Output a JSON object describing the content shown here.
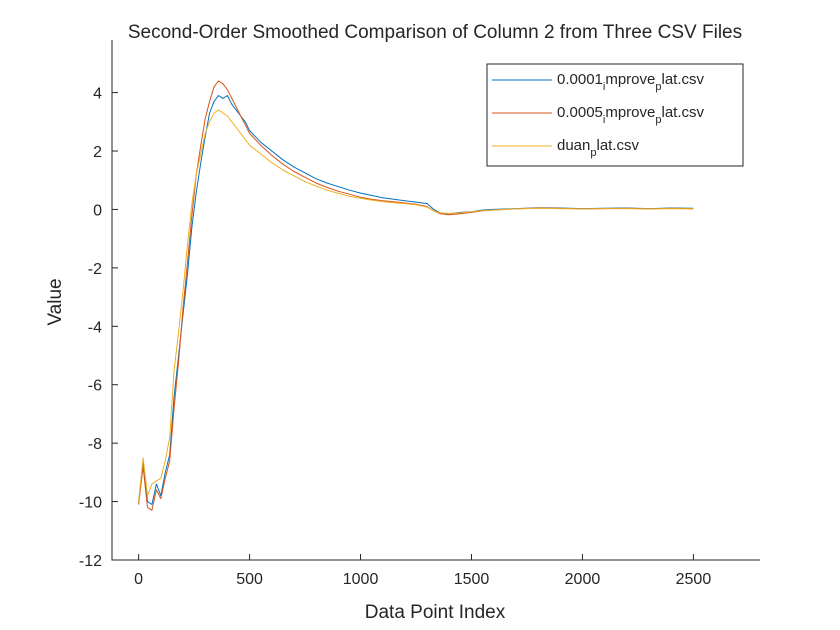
{
  "chart_data": {
    "type": "line",
    "title": "Second-Order Smoothed Comparison of Column 2 from Three CSV Files",
    "xlabel": "Data Point Index",
    "ylabel": "Value",
    "xlim": [
      -120,
      2800
    ],
    "ylim": [
      -12,
      5.8
    ],
    "xticks": [
      0,
      500,
      1000,
      1500,
      2000,
      2500
    ],
    "yticks": [
      -12,
      -10,
      -8,
      -6,
      -4,
      -2,
      0,
      2,
      4
    ],
    "grid": false,
    "legend_position": "top-right",
    "series": [
      {
        "name": "0.0001_improve_plat.csv",
        "legend_parts": [
          "0.0001",
          "i",
          "mprove",
          "p",
          "lat.csv"
        ],
        "color": "#0072BD",
        "x": [
          0,
          20,
          40,
          60,
          80,
          100,
          120,
          140,
          160,
          180,
          200,
          220,
          240,
          260,
          280,
          300,
          320,
          340,
          360,
          380,
          400,
          420,
          440,
          460,
          480,
          500,
          550,
          600,
          650,
          700,
          750,
          800,
          850,
          900,
          950,
          1000,
          1050,
          1100,
          1150,
          1200,
          1250,
          1300,
          1330,
          1360,
          1400,
          1450,
          1500,
          1550,
          1600,
          1700,
          1800,
          1900,
          2000,
          2100,
          2200,
          2300,
          2400,
          2500
        ],
        "y": [
          -10.0,
          -8.6,
          -10.0,
          -10.1,
          -9.4,
          -9.8,
          -9.0,
          -8.4,
          -6.4,
          -5.0,
          -3.6,
          -2.2,
          -0.6,
          0.6,
          1.6,
          2.5,
          3.3,
          3.7,
          3.9,
          3.8,
          3.9,
          3.6,
          3.4,
          3.2,
          3.0,
          2.7,
          2.3,
          2.0,
          1.7,
          1.45,
          1.25,
          1.05,
          0.9,
          0.78,
          0.66,
          0.56,
          0.48,
          0.4,
          0.35,
          0.3,
          0.25,
          0.2,
          0.0,
          -0.12,
          -0.15,
          -0.1,
          -0.08,
          -0.02,
          0.0,
          0.03,
          0.06,
          0.05,
          0.03,
          0.04,
          0.05,
          0.03,
          0.05,
          0.04
        ]
      },
      {
        "name": "0.0005_improve_plat.csv",
        "legend_parts": [
          "0.0005",
          "i",
          "mprove",
          "p",
          "lat.csv"
        ],
        "color": "#D95319",
        "x": [
          0,
          20,
          40,
          60,
          80,
          100,
          120,
          140,
          160,
          180,
          200,
          220,
          240,
          260,
          280,
          300,
          320,
          340,
          360,
          380,
          400,
          420,
          440,
          460,
          480,
          500,
          550,
          600,
          650,
          700,
          750,
          800,
          850,
          900,
          950,
          1000,
          1050,
          1100,
          1150,
          1200,
          1250,
          1300,
          1330,
          1360,
          1400,
          1450,
          1500,
          1550,
          1600,
          1700,
          1800,
          1900,
          2000,
          2100,
          2200,
          2300,
          2400,
          2500
        ],
        "y": [
          -10.1,
          -8.8,
          -10.2,
          -10.3,
          -9.6,
          -9.9,
          -9.2,
          -8.6,
          -6.8,
          -5.2,
          -3.4,
          -1.8,
          -0.2,
          1.2,
          2.2,
          3.1,
          3.7,
          4.2,
          4.4,
          4.3,
          4.1,
          3.8,
          3.5,
          3.2,
          2.9,
          2.6,
          2.2,
          1.85,
          1.55,
          1.3,
          1.1,
          0.9,
          0.75,
          0.62,
          0.52,
          0.42,
          0.35,
          0.3,
          0.26,
          0.22,
          0.18,
          0.1,
          -0.05,
          -0.15,
          -0.18,
          -0.15,
          -0.1,
          -0.05,
          -0.02,
          0.02,
          0.05,
          0.04,
          0.02,
          0.03,
          0.04,
          0.02,
          0.04,
          0.03
        ]
      },
      {
        "name": "duan_plat.csv",
        "legend_parts": [
          "duan",
          "p",
          "lat.csv"
        ],
        "color": "#EDB120",
        "x": [
          0,
          20,
          40,
          60,
          80,
          100,
          120,
          140,
          160,
          180,
          200,
          220,
          240,
          260,
          280,
          300,
          320,
          340,
          360,
          380,
          400,
          420,
          440,
          460,
          480,
          500,
          550,
          600,
          650,
          700,
          750,
          800,
          850,
          900,
          950,
          1000,
          1050,
          1100,
          1150,
          1200,
          1250,
          1300,
          1330,
          1360,
          1400,
          1450,
          1500,
          1550,
          1600,
          1700,
          1800,
          1900,
          2000,
          2100,
          2200,
          2300,
          2400,
          2500
        ],
        "y": [
          -10.0,
          -8.5,
          -9.8,
          -9.4,
          -9.3,
          -9.2,
          -8.6,
          -7.8,
          -5.5,
          -4.2,
          -2.8,
          -1.2,
          0.2,
          1.2,
          1.9,
          2.6,
          3.0,
          3.3,
          3.4,
          3.3,
          3.2,
          3.0,
          2.8,
          2.6,
          2.4,
          2.2,
          1.9,
          1.6,
          1.35,
          1.15,
          0.95,
          0.8,
          0.66,
          0.55,
          0.45,
          0.38,
          0.32,
          0.27,
          0.23,
          0.2,
          0.16,
          0.08,
          -0.05,
          -0.12,
          -0.14,
          -0.12,
          -0.08,
          -0.04,
          -0.02,
          0.02,
          0.04,
          0.03,
          0.02,
          0.03,
          0.03,
          0.02,
          0.03,
          0.02
        ]
      }
    ]
  }
}
